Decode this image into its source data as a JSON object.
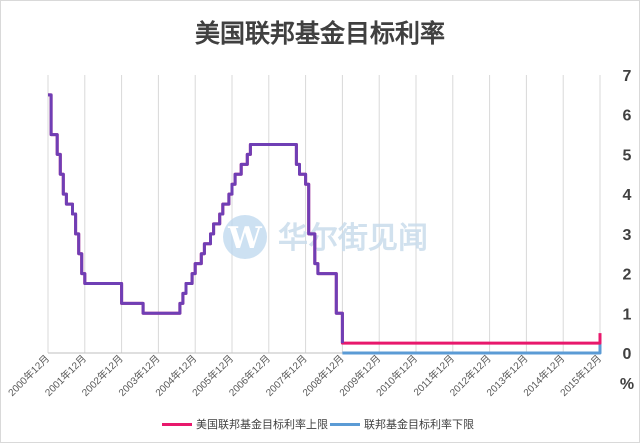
{
  "chart_data": {
    "type": "line",
    "title": "美国联邦基金目标利率",
    "y_unit": "%",
    "ylim": [
      0,
      7
    ],
    "y_ticks": [
      "0",
      "1",
      "2",
      "3",
      "4",
      "5",
      "6",
      "7"
    ],
    "x_ticks": [
      "2000年12月",
      "2001年12月",
      "2002年12月",
      "2003年12月",
      "2004年12月",
      "2005年12月",
      "2006年12月",
      "2007年12月",
      "2008年12月",
      "2009年12月",
      "2010年12月",
      "2011年12月",
      "2012年12月",
      "2013年12月",
      "2014年12月",
      "2015年12月"
    ],
    "grid": "vertical",
    "y_axis_position": "right",
    "legend_position": "bottom",
    "series": [
      {
        "name": "美国联邦基金目标利率上限",
        "color": "#e8186c",
        "points": [
          [
            "2000-12",
            6.5
          ],
          [
            "2001-01",
            5.5
          ],
          [
            "2001-02",
            5.5
          ],
          [
            "2001-03",
            5.0
          ],
          [
            "2001-04",
            4.5
          ],
          [
            "2001-05",
            4.0
          ],
          [
            "2001-06",
            3.75
          ],
          [
            "2001-07",
            3.75
          ],
          [
            "2001-08",
            3.5
          ],
          [
            "2001-09",
            3.0
          ],
          [
            "2001-10",
            2.5
          ],
          [
            "2001-11",
            2.0
          ],
          [
            "2001-12",
            1.75
          ],
          [
            "2002-11",
            1.75
          ],
          [
            "2002-12",
            1.25
          ],
          [
            "2003-06",
            1.25
          ],
          [
            "2003-07",
            1.0
          ],
          [
            "2004-06",
            1.0
          ],
          [
            "2004-07",
            1.25
          ],
          [
            "2004-08",
            1.5
          ],
          [
            "2004-09",
            1.75
          ],
          [
            "2004-11",
            2.0
          ],
          [
            "2004-12",
            2.25
          ],
          [
            "2005-02",
            2.5
          ],
          [
            "2005-03",
            2.75
          ],
          [
            "2005-05",
            3.0
          ],
          [
            "2005-06",
            3.25
          ],
          [
            "2005-08",
            3.5
          ],
          [
            "2005-09",
            3.75
          ],
          [
            "2005-11",
            4.0
          ],
          [
            "2005-12",
            4.25
          ],
          [
            "2006-01",
            4.5
          ],
          [
            "2006-03",
            4.75
          ],
          [
            "2006-05",
            5.0
          ],
          [
            "2006-06",
            5.25
          ],
          [
            "2007-08",
            5.25
          ],
          [
            "2007-09",
            4.75
          ],
          [
            "2007-10",
            4.5
          ],
          [
            "2007-12",
            4.25
          ],
          [
            "2008-01",
            3.0
          ],
          [
            "2008-02",
            3.0
          ],
          [
            "2008-03",
            2.25
          ],
          [
            "2008-04",
            2.0
          ],
          [
            "2008-09",
            2.0
          ],
          [
            "2008-10",
            1.0
          ],
          [
            "2008-11",
            1.0
          ],
          [
            "2008-12",
            0.25
          ],
          [
            "2015-11",
            0.25
          ],
          [
            "2015-12",
            0.5
          ]
        ]
      },
      {
        "name": "联邦基金目标利率下限",
        "color": "#5b9bd5",
        "points": [
          [
            "2008-12",
            0.0
          ],
          [
            "2015-11",
            0.0
          ],
          [
            "2015-12",
            0.25
          ]
        ]
      }
    ]
  },
  "watermark": {
    "text": "华尔街见闻",
    "logo_letter": "W"
  }
}
